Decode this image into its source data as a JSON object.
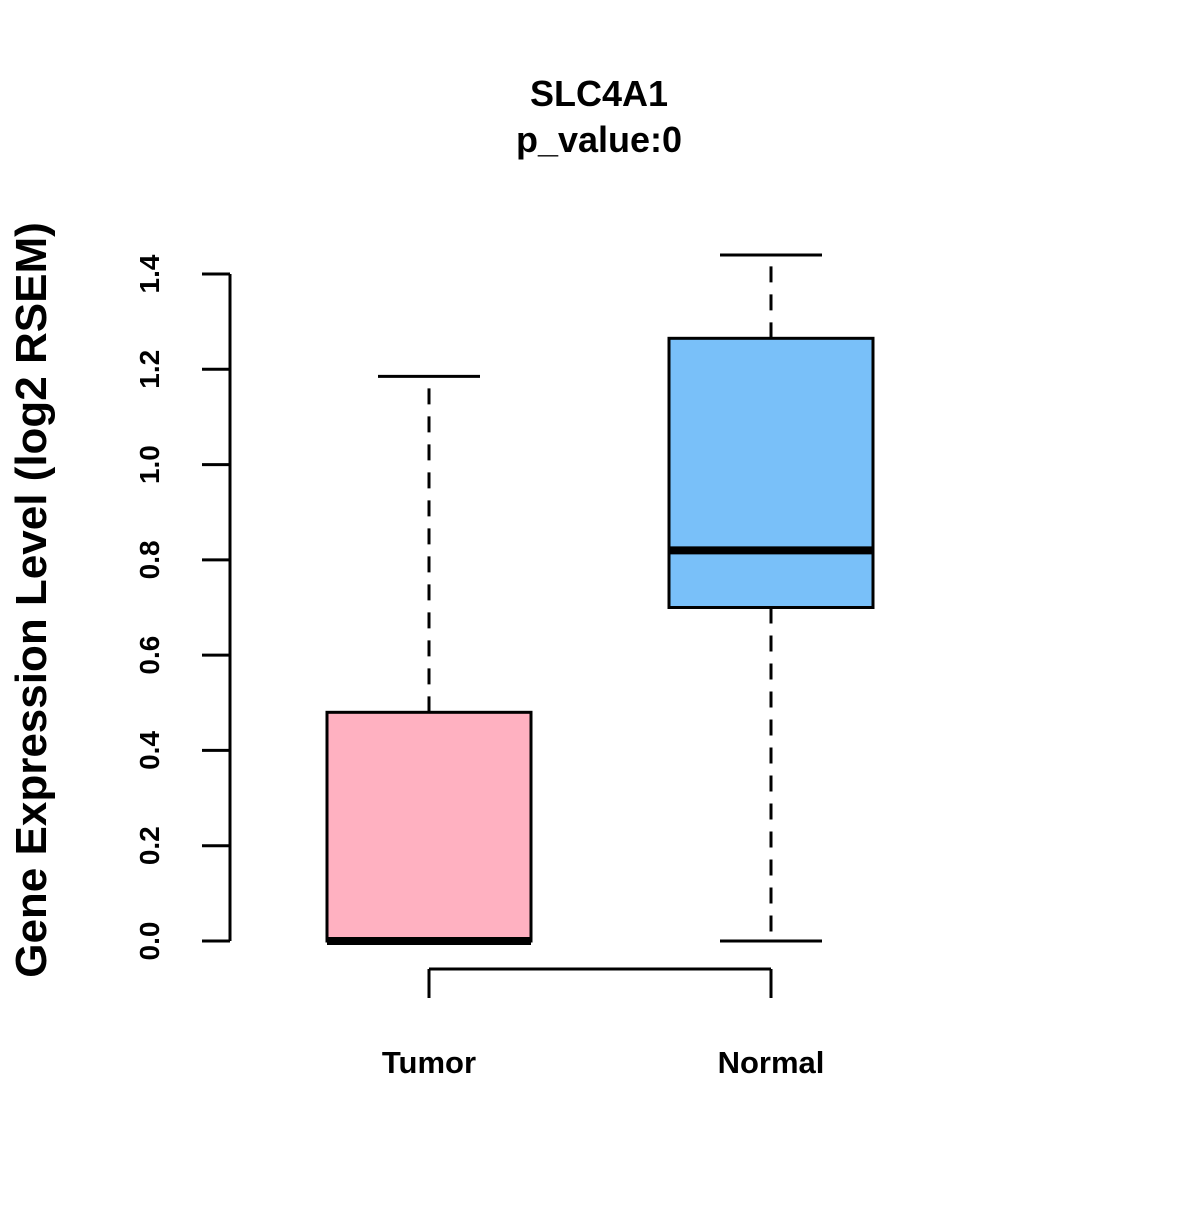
{
  "chart_data": {
    "type": "boxplot",
    "title": "SLC4A1",
    "subtitle": "p_value:0",
    "xlabel": "",
    "ylabel": "Gene Expression Level (log2 RSEM)",
    "ylim": [
      0,
      1.4
    ],
    "yticks": [
      "0.0",
      "0.2",
      "0.4",
      "0.6",
      "0.8",
      "1.0",
      "1.2",
      "1.4"
    ],
    "grid": false,
    "categories": [
      "Tumor",
      "Normal"
    ],
    "boxes": [
      {
        "name": "Tumor",
        "whisker_low": 0.0,
        "q1": 0.0,
        "median": 0.0,
        "q3": 0.48,
        "whisker_high": 1.185,
        "color": "#FFB1C1"
      },
      {
        "name": "Normal",
        "whisker_low": 0.0,
        "q1": 0.7,
        "median": 0.82,
        "q3": 1.265,
        "whisker_high": 1.44,
        "color": "#79C0F9"
      }
    ]
  }
}
